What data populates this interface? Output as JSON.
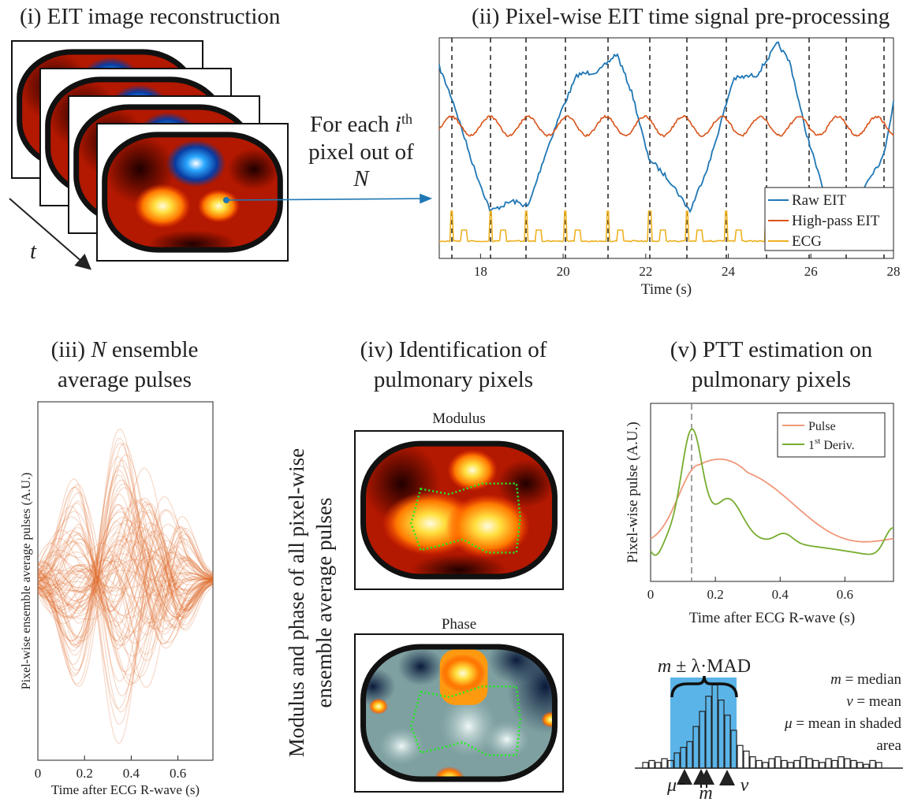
{
  "panel_i": {
    "title": "(i) EIT image reconstruction",
    "time_symbol": "t"
  },
  "annotation": {
    "line1": "For each ",
    "i": "i",
    "th": "th",
    "line2": "pixel out of",
    "N": "N"
  },
  "panel_ii": {
    "title": "(ii) Pixel-wise EIT time signal pre-processing",
    "xlabel": "Time (s)",
    "xlim": [
      17,
      28
    ],
    "xticks": [
      18,
      20,
      22,
      24,
      26,
      28
    ],
    "series": [
      {
        "name": "Raw EIT",
        "color": "#1f77b4"
      },
      {
        "name": "High-pass EIT",
        "color": "#d95319"
      },
      {
        "name": "ECG",
        "color": "#edb120"
      }
    ]
  },
  "panel_iii": {
    "title_prefix": "(iii) ",
    "title_N": "N",
    "title_rest": " ensemble",
    "title_line2": "average pulses",
    "ylabel": "Pixel-wise ensemble average pulses (A.U.)",
    "xlabel": "Time after ECG R-wave (s)",
    "xlim": [
      0,
      0.75
    ],
    "xticks": [
      0,
      0.2,
      0.4,
      0.6
    ],
    "color": "#e06a2a"
  },
  "panel_iv": {
    "title_line1": "(iv) Identification of",
    "title_line2": "pulmonary pixels",
    "side_line1": "Modulus and phase of all pixel-wise",
    "side_line2": "ensemble average pulses",
    "image1": "Modulus",
    "image2": "Phase"
  },
  "panel_v": {
    "title_line1": "(v) PTT estimation on",
    "title_line2": "pulmonary pixels",
    "ylabel": "Pixel-wise pulse (A.U.)",
    "xlabel": "Time after ECG R-wave  (s)",
    "xlim": [
      0,
      0.75
    ],
    "xticks": [
      0,
      0.2,
      0.4,
      0.6
    ],
    "legend": [
      {
        "name": "Pulse",
        "color": "#f0987a"
      },
      {
        "name": "1",
        "sup": "st",
        "rest": " Deriv.",
        "color": "#77ac30"
      }
    ],
    "histogram": {
      "range_m": "m",
      "range_rest": " ± λ·MAD",
      "def1_sym": "m",
      "def1": " = median",
      "def2_sym": "ν",
      "def2": " = mean",
      "def3_sym": "μ",
      "def3": " = mean in shaded",
      "def3_line2": "area",
      "arrow_mu": "μ",
      "arrow_m": "m",
      "arrow_nu": "ν"
    }
  }
}
